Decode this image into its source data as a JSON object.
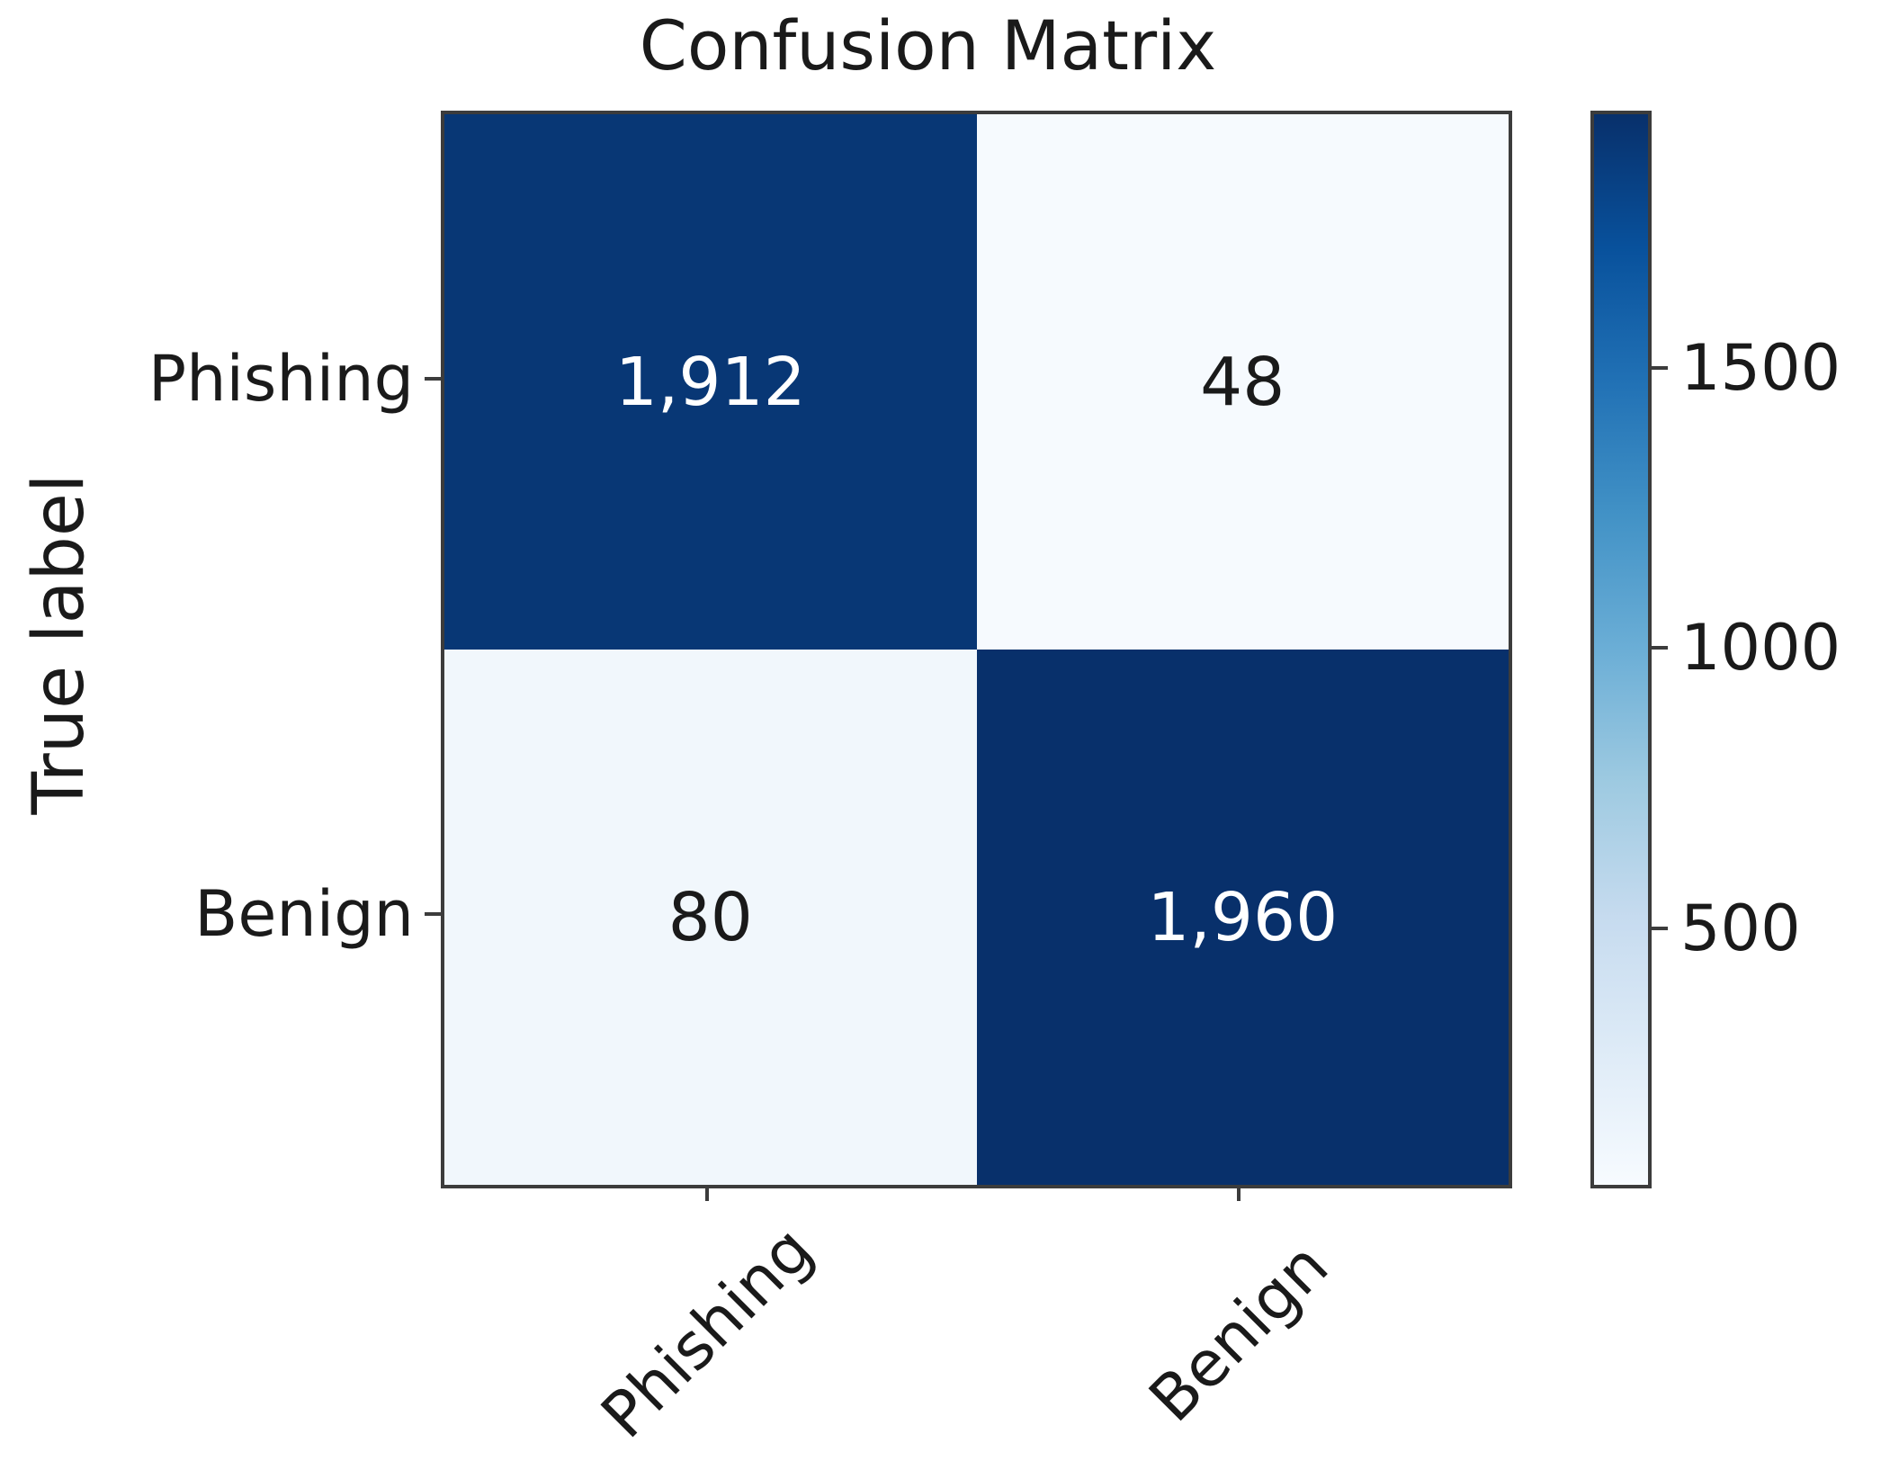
{
  "figure": {
    "background_color": "#ffffff",
    "text_color": "#1a1a1a",
    "spine_color": "#3c3c3c"
  },
  "chart_data": {
    "type": "heatmap",
    "title": "Confusion Matrix",
    "xlabel": "",
    "ylabel": "True label",
    "x_tick_labels": [
      "Phishing",
      "Benign"
    ],
    "y_tick_labels": [
      "Phishing",
      "Benign"
    ],
    "matrix_values": [
      [
        1912,
        48
      ],
      [
        80,
        1960
      ]
    ],
    "cell_labels": [
      [
        "1,912",
        "48"
      ],
      [
        "80",
        "1,960"
      ]
    ],
    "cell_colors": [
      [
        "#083775",
        "#f6fafe"
      ],
      [
        "#f1f7fc",
        "#08306b"
      ]
    ],
    "cell_text_colors": [
      [
        "#ffffff",
        "#1a1a1a"
      ],
      [
        "#1a1a1a",
        "#ffffff"
      ]
    ],
    "grid": false,
    "x_tick_rotation_deg": 45,
    "colorbar": {
      "position": "right",
      "colormap": "Blues",
      "vmin": 48,
      "vmax": 1960,
      "tick_values": [
        500,
        1000,
        1500
      ],
      "tick_labels": [
        "500",
        "1000",
        "1500"
      ],
      "gradient_stops": [
        "#f7fbff",
        "#deebf7",
        "#c6dbef",
        "#9ecae1",
        "#6baed6",
        "#4292c6",
        "#2171b5",
        "#08519c",
        "#08306b"
      ]
    }
  }
}
